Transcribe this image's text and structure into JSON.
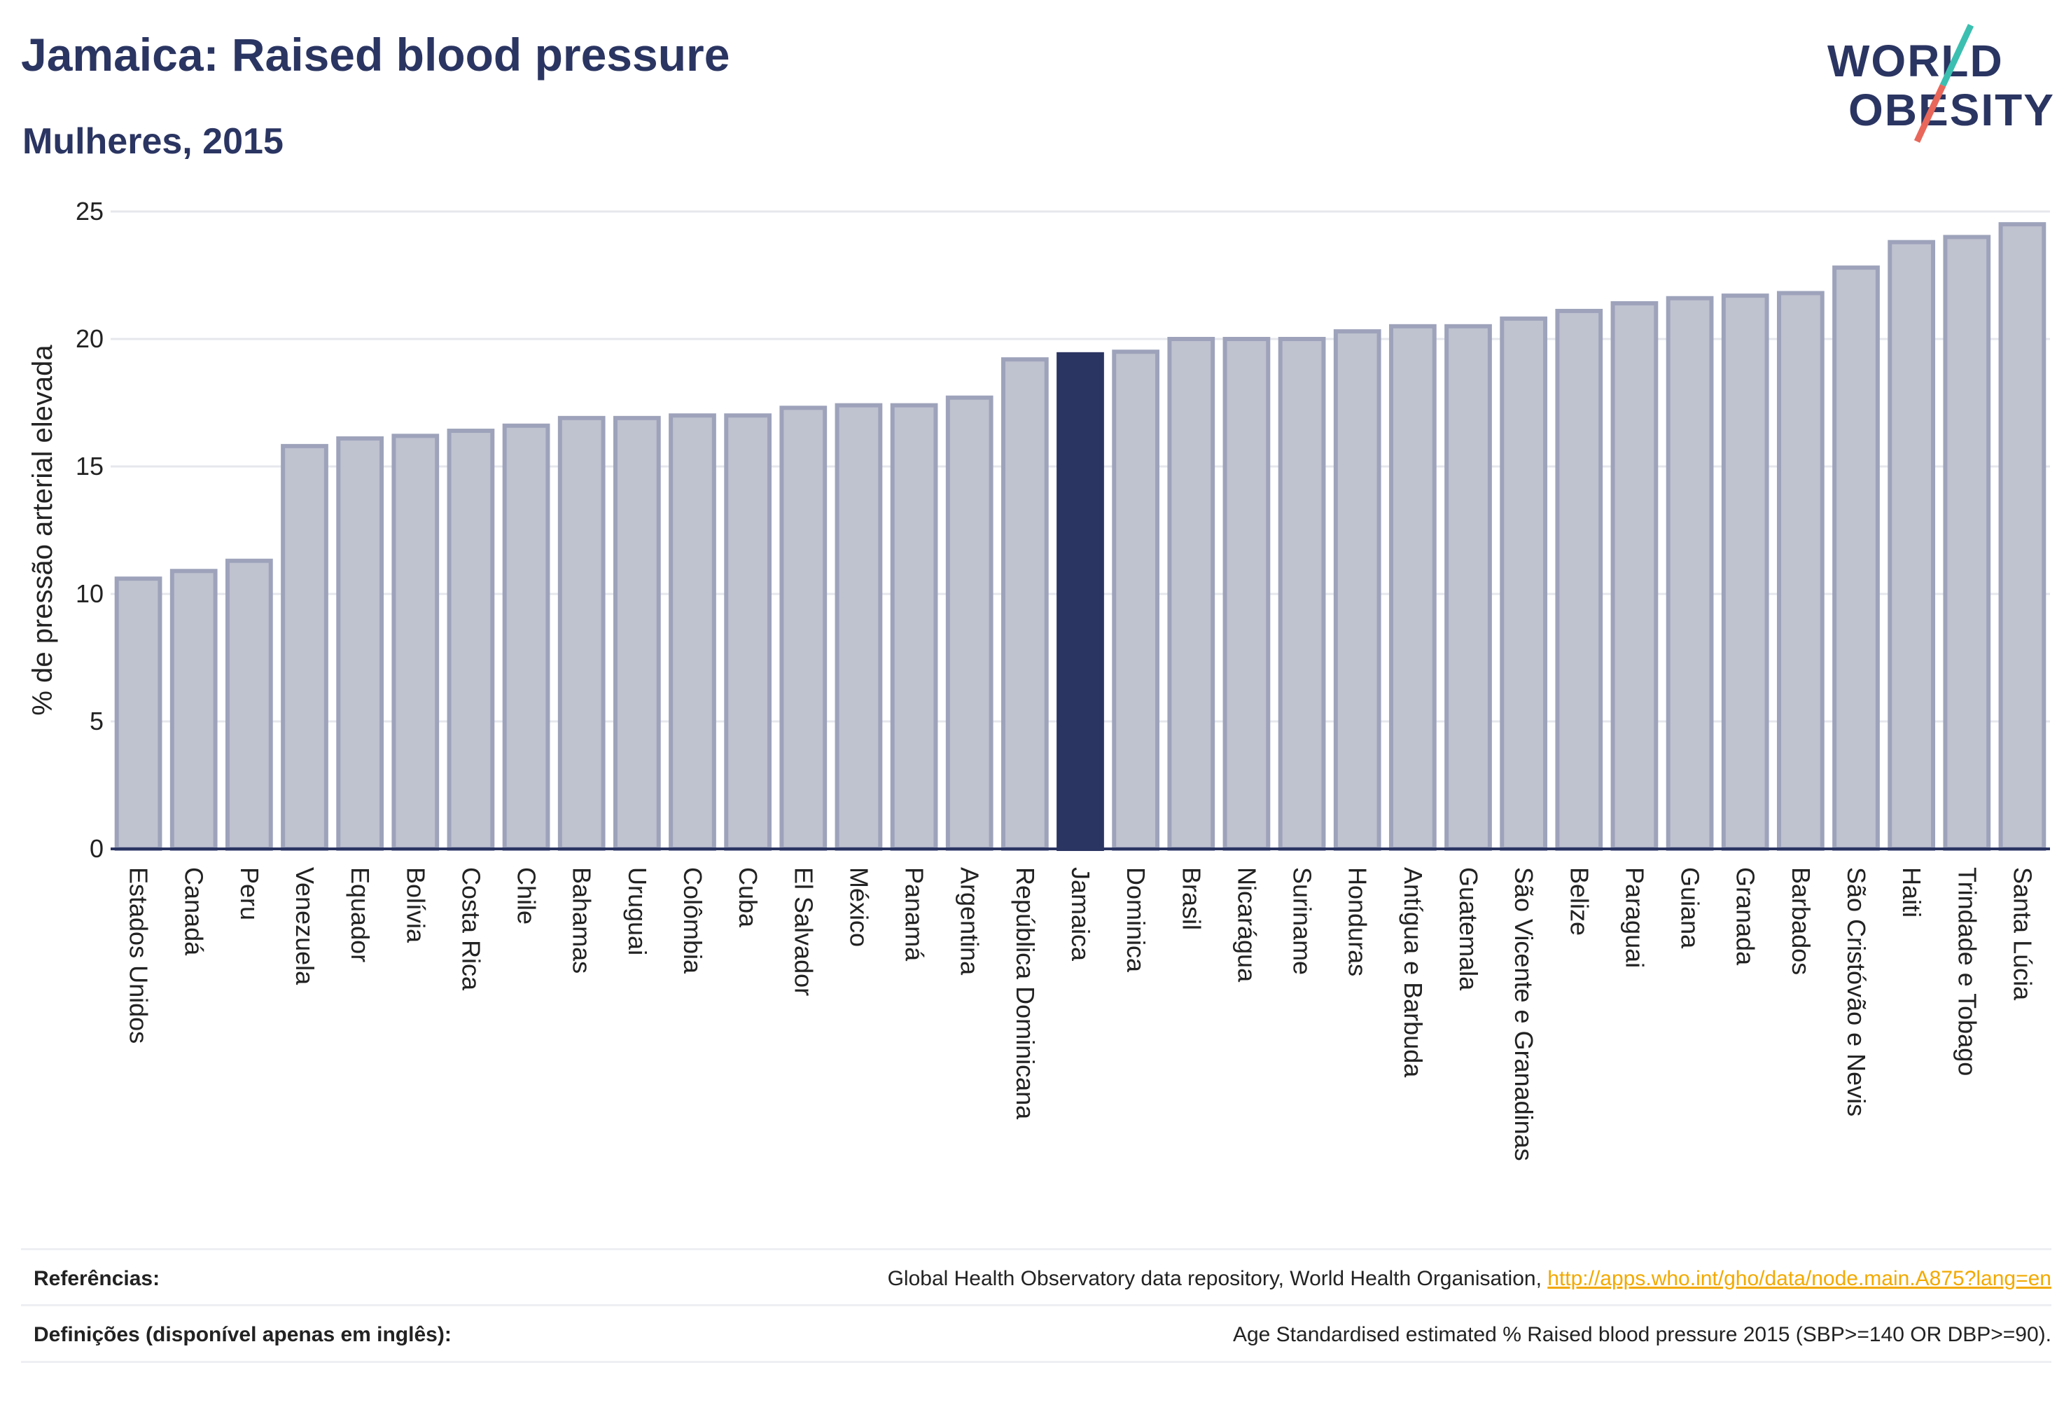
{
  "header": {
    "title": "Jamaica: Raised blood pressure",
    "subtitle": "Mulheres, 2015"
  },
  "logo": {
    "line1": "WORLD",
    "line2": "OBESITY",
    "accent_top": "#3bbfb0",
    "accent_bottom": "#e8675a"
  },
  "colors": {
    "bar_fill": "#bfc2cf",
    "bar_stroke": "#9ea3bb",
    "highlight": "#2b3562",
    "grid": "#e6e7ec",
    "axis": "#2b3562"
  },
  "chart_data": {
    "type": "bar",
    "ylabel": "% de pressão arterial elevada",
    "ylim": [
      0,
      25
    ],
    "yticks": [
      0,
      5,
      10,
      15,
      20,
      25
    ],
    "highlight": "Jamaica",
    "categories": [
      "Estados Unidos",
      "Canadá",
      "Peru",
      "Venezuela",
      "Equador",
      "Bolívia",
      "Costa Rica",
      "Chile",
      "Bahamas",
      "Uruguai",
      "Colômbia",
      "Cuba",
      "El Salvador",
      "México",
      "Panamá",
      "Argentina",
      "República Dominicana",
      "Jamaica",
      "Dominica",
      "Brasil",
      "Nicarágua",
      "Suriname",
      "Honduras",
      "Antígua e Barbuda",
      "Guatemala",
      "São Vicente e Granadinas",
      "Belize",
      "Paraguai",
      "Guiana",
      "Granada",
      "Barbados",
      "São Cristóvão e Nevis",
      "Haiti",
      "Trindade e Tobago",
      "Santa Lúcia"
    ],
    "values": [
      10.6,
      10.9,
      11.3,
      15.8,
      16.1,
      16.2,
      16.4,
      16.6,
      16.9,
      16.9,
      17.0,
      17.0,
      17.3,
      17.4,
      17.4,
      17.7,
      19.2,
      19.4,
      19.5,
      20.0,
      20.0,
      20.0,
      20.3,
      20.5,
      20.5,
      20.8,
      21.1,
      21.4,
      21.6,
      21.7,
      21.8,
      22.8,
      23.8,
      24.0,
      24.5
    ]
  },
  "footer": {
    "references_label": "Referências:",
    "references_text": "Global Health Observatory data repository, World Health Organisation,",
    "references_link": "http://apps.who.int/gho/data/node.main.A875?lang=en",
    "definitions_label": "Definições (disponível apenas em inglês):",
    "definitions_text": "Age Standardised estimated % Raised blood pressure 2015 (SBP>=140 OR DBP>=90)."
  }
}
